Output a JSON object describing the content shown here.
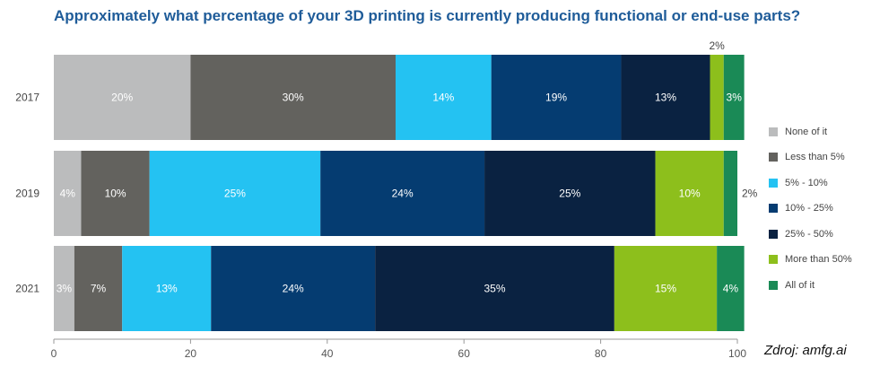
{
  "title": "Approximately what percentage of your 3D printing is currently producing functional or end-use parts?",
  "source": "Zdroj: amfg.ai",
  "chart_data": {
    "type": "bar",
    "orientation": "horizontal",
    "stacked": true,
    "categories": [
      "2017",
      "2019",
      "2021"
    ],
    "series": [
      {
        "name": "None of it",
        "color": "#bbbcbd",
        "values": [
          20,
          4,
          3
        ]
      },
      {
        "name": "Less than 5%",
        "color": "#63625e",
        "values": [
          30,
          10,
          7
        ]
      },
      {
        "name": "5% - 10%",
        "color": "#24c2f2",
        "values": [
          14,
          25,
          13
        ]
      },
      {
        "name": "10% - 25%",
        "color": "#053c71",
        "values": [
          19,
          24,
          24
        ]
      },
      {
        "name": "25% - 50%",
        "color": "#0a2241",
        "values": [
          13,
          25,
          35
        ]
      },
      {
        "name": "More than 50%",
        "color": "#8dbf1c",
        "values": [
          2,
          10,
          15
        ]
      },
      {
        "name": "All of it",
        "color": "#1a8a56",
        "values": [
          3,
          2,
          4
        ]
      }
    ],
    "xlim": [
      0,
      100
    ],
    "xticks": [
      "0",
      "20",
      "40",
      "60",
      "80",
      "100"
    ],
    "legend_position": "right",
    "outside_labels": [
      {
        "category": "2017",
        "series": "More than 50%",
        "text": "2%",
        "placement": "above"
      },
      {
        "category": "2019",
        "series": "All of it",
        "text": "2%",
        "placement": "right"
      }
    ],
    "grid": false
  }
}
